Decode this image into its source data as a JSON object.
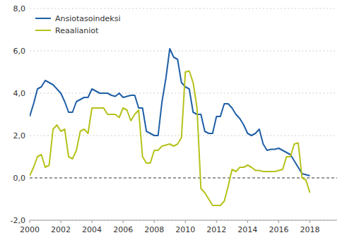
{
  "chart_data": {
    "type": "line",
    "x": [
      2000,
      2000.25,
      2000.5,
      2000.75,
      2001,
      2001.25,
      2001.5,
      2001.75,
      2002,
      2002.25,
      2002.5,
      2002.75,
      2003,
      2003.25,
      2003.5,
      2003.75,
      2004,
      2004.25,
      2004.5,
      2004.75,
      2005,
      2005.25,
      2005.5,
      2005.75,
      2006,
      2006.25,
      2006.5,
      2006.75,
      2007,
      2007.25,
      2007.5,
      2007.75,
      2008,
      2008.25,
      2008.5,
      2008.75,
      2009,
      2009.25,
      2009.5,
      2009.75,
      2010,
      2010.25,
      2010.5,
      2010.75,
      2011,
      2011.25,
      2011.5,
      2011.75,
      2012,
      2012.25,
      2012.5,
      2012.75,
      2013,
      2013.25,
      2013.5,
      2013.75,
      2014,
      2014.25,
      2014.5,
      2014.75,
      2015,
      2015.25,
      2015.5,
      2015.75,
      2016,
      2016.25,
      2016.5,
      2016.75,
      2017,
      2017.25,
      2017.5,
      2017.75,
      2018
    ],
    "series": [
      {
        "name": "Ansiotasoindeksi",
        "color": "#1f5fa6",
        "values": [
          2.9,
          3.5,
          4.2,
          4.3,
          4.6,
          4.5,
          4.4,
          4.2,
          4.0,
          3.6,
          3.1,
          3.1,
          3.6,
          3.7,
          3.8,
          3.8,
          4.2,
          4.1,
          4.0,
          4.0,
          4.0,
          3.9,
          3.85,
          4.0,
          3.8,
          3.85,
          3.9,
          3.9,
          3.3,
          3.3,
          2.2,
          2.1,
          2.0,
          2.0,
          3.6,
          4.7,
          6.1,
          5.7,
          5.6,
          4.5,
          4.3,
          4.2,
          3.1,
          3.0,
          3.0,
          2.2,
          2.1,
          2.1,
          2.9,
          2.9,
          3.5,
          3.5,
          3.3,
          3.0,
          2.8,
          2.5,
          2.1,
          2.0,
          2.1,
          2.3,
          1.6,
          1.3,
          1.35,
          1.35,
          1.4,
          1.3,
          1.2,
          1.1,
          0.8,
          0.5,
          0.2,
          0.15,
          0.1
        ]
      },
      {
        "name": "Reaalianiot",
        "color": "#b5c21a",
        "values": [
          0.1,
          0.5,
          1.0,
          1.1,
          0.5,
          0.6,
          2.3,
          2.5,
          2.2,
          2.3,
          1.0,
          0.9,
          1.3,
          2.2,
          2.3,
          2.1,
          3.3,
          3.3,
          3.3,
          3.3,
          3.0,
          3.0,
          3.0,
          2.85,
          3.3,
          3.2,
          2.7,
          3.0,
          3.2,
          1.0,
          0.7,
          0.7,
          1.3,
          1.3,
          1.5,
          1.55,
          1.6,
          1.5,
          1.6,
          1.9,
          5.0,
          5.05,
          4.5,
          3.3,
          -0.5,
          -0.7,
          -1.0,
          -1.3,
          -1.3,
          -1.3,
          -1.1,
          -0.4,
          0.4,
          0.3,
          0.5,
          0.5,
          0.6,
          0.5,
          0.35,
          0.35,
          0.3,
          0.3,
          0.3,
          0.3,
          0.35,
          0.4,
          1.0,
          1.0,
          1.6,
          1.65,
          0.0,
          -0.1,
          -0.7
        ]
      }
    ],
    "xlim": [
      2000,
      2019.75
    ],
    "xticks": [
      2000,
      2002,
      2004,
      2006,
      2008,
      2010,
      2012,
      2014,
      2016,
      2018
    ],
    "ylim": [
      -2.0,
      8.0
    ],
    "yticks": [
      {
        "value": -2.0,
        "label": "-2,0"
      },
      {
        "value": 0.0,
        "label": "0,0"
      },
      {
        "value": 2.0,
        "label": "2,0"
      },
      {
        "value": 4.0,
        "label": "4,0"
      },
      {
        "value": 6.0,
        "label": "6,0"
      },
      {
        "value": 8.0,
        "label": "8,0"
      }
    ],
    "grid": true,
    "legend": "upper left"
  }
}
